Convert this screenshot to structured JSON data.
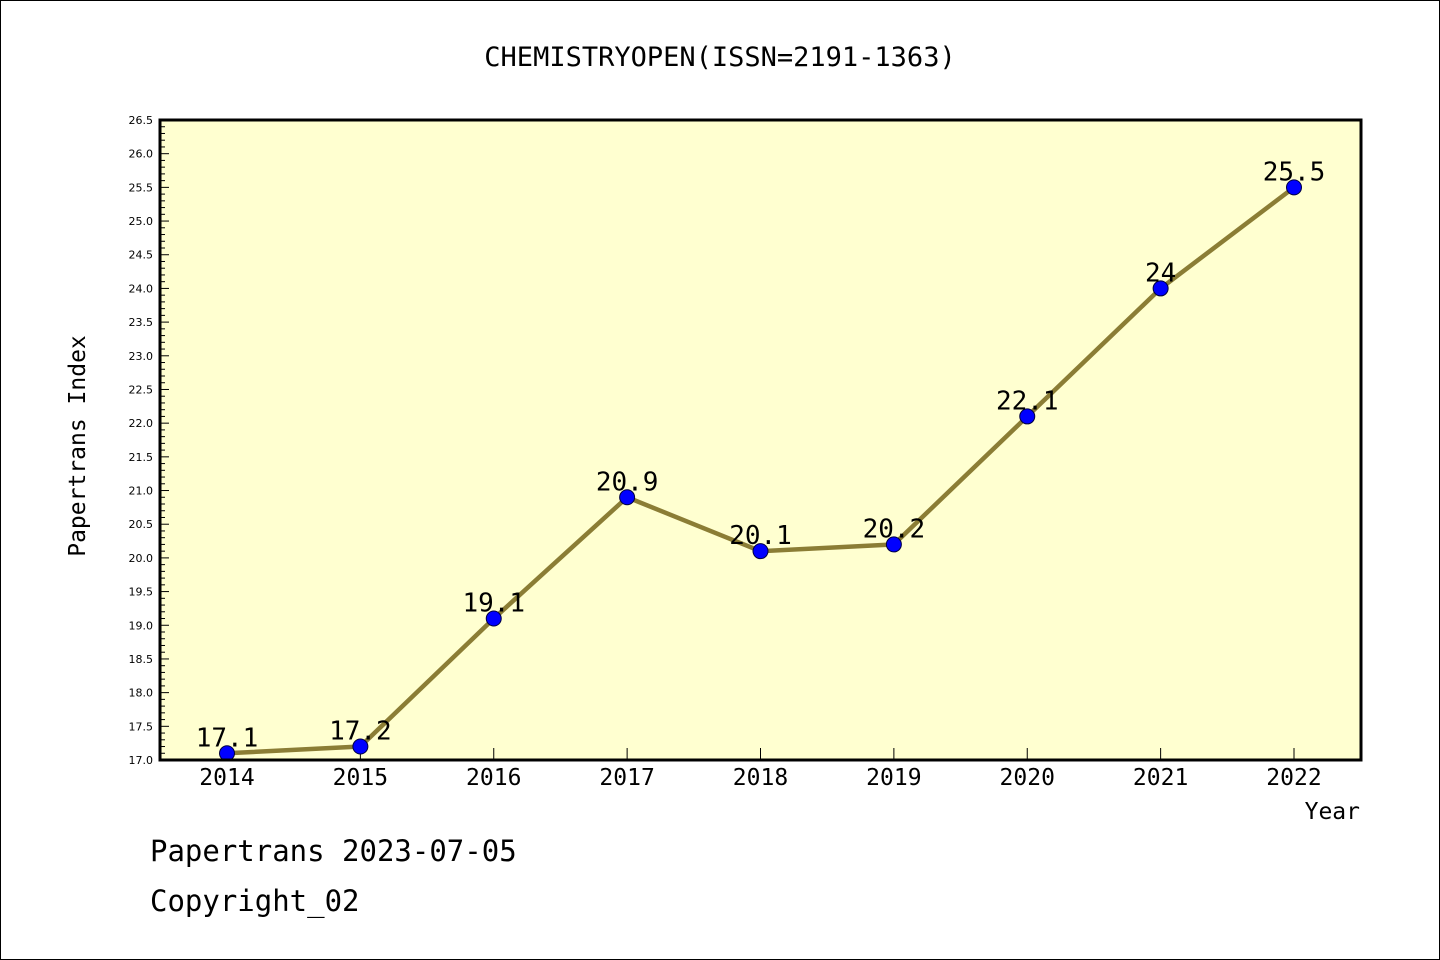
{
  "chart_data": {
    "type": "line",
    "title": "CHEMISTRYOPEN(ISSN=2191-1363)",
    "xlabel": "Year",
    "ylabel": "Papertrans Index",
    "categories": [
      "2014",
      "2015",
      "2016",
      "2017",
      "2018",
      "2019",
      "2020",
      "2021",
      "2022"
    ],
    "values": [
      17.1,
      17.2,
      19.1,
      20.9,
      20.1,
      20.2,
      22.1,
      24,
      25.5
    ],
    "data_labels": [
      "17.1",
      "17.2",
      "19.1",
      "20.9",
      "20.1",
      "20.2",
      "22.1",
      "24",
      "25.5"
    ],
    "ylim": [
      17.0,
      26.5
    ],
    "yticks": [
      "17.0",
      "17.5",
      "18.0",
      "18.5",
      "19.0",
      "19.5",
      "20.0",
      "20.5",
      "21.0",
      "21.5",
      "22.0",
      "22.5",
      "23.0",
      "23.5",
      "24.0",
      "24.5",
      "25.0",
      "25.5",
      "26.0",
      "26.5"
    ],
    "grid": false,
    "colors": {
      "plot_background": "#ffffd0",
      "line": "#8b7d35",
      "marker": "#0000ff"
    }
  },
  "footer": {
    "line1": "Papertrans 2023-07-05",
    "line2": "Copyright_02"
  }
}
